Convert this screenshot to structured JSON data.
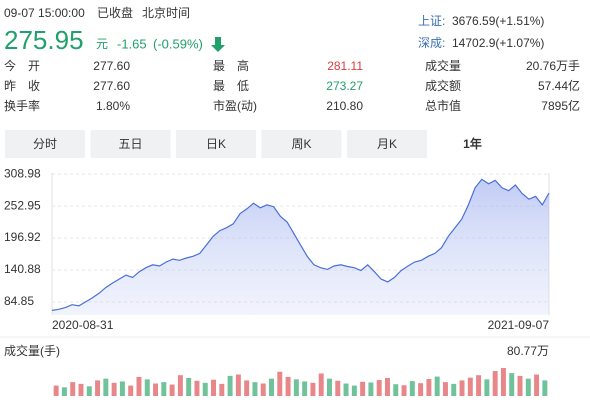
{
  "header": {
    "datetime": "09-07 15:00:00",
    "status": "已收盘",
    "timezone": "北京时间",
    "price": "275.95",
    "unit": "元",
    "change": "-1.65",
    "change_pct": "(-0.59%)"
  },
  "indices": [
    {
      "name": "上证:",
      "value": "3676.59(+1.51%)"
    },
    {
      "name": "深成:",
      "value": "14702.9(+1.07%)"
    }
  ],
  "stats": [
    [
      {
        "label": "今　开",
        "value": "277.60"
      },
      {
        "label": "最　高",
        "value": "281.11",
        "color": "#e03a3a"
      },
      {
        "label": "成交量",
        "value": "20.76万手"
      }
    ],
    [
      {
        "label": "昨　收",
        "value": "277.60"
      },
      {
        "label": "最　低",
        "value": "273.27",
        "color": "#22a06b"
      },
      {
        "label": "成交额",
        "value": "57.44亿"
      }
    ],
    [
      {
        "label": "换手率",
        "value": "1.80%"
      },
      {
        "label": "市盈(动)",
        "value": "210.80"
      },
      {
        "label": "总市值",
        "value": "7895亿"
      }
    ]
  ],
  "tabs": [
    "分时",
    "五日",
    "日K",
    "周K",
    "月K",
    "1年"
  ],
  "active_tab": 5,
  "chart": {
    "type": "area",
    "ylim": [
      62,
      311
    ],
    "yticks": [
      308.98,
      252.95,
      196.92,
      140.88,
      84.85
    ],
    "grid": true,
    "x_start": "2020-08-31",
    "x_end": "2021-09-07",
    "line_color": "#4a6fd8",
    "price": {
      "values": [
        70,
        72,
        75,
        80,
        78,
        85,
        92,
        100,
        110,
        118,
        125,
        132,
        128,
        138,
        145,
        150,
        148,
        155,
        160,
        158,
        162,
        165,
        170,
        185,
        200,
        210,
        215,
        222,
        240,
        248,
        258,
        250,
        255,
        252,
        235,
        225,
        205,
        185,
        165,
        150,
        145,
        142,
        148,
        150,
        147,
        145,
        140,
        150,
        138,
        125,
        120,
        128,
        140,
        148,
        155,
        158,
        165,
        170,
        180,
        200,
        215,
        230,
        255,
        285,
        300,
        292,
        298,
        285,
        280,
        290,
        275,
        265,
        270,
        255,
        275.95
      ]
    },
    "volume_title": "成交量(手)",
    "volume_max_label": "80.77万",
    "volume_lim": [
      0,
      80.77
    ],
    "up_color": "#e8878a",
    "down_color": "#6fc29a",
    "volume": [
      30,
      25,
      40,
      35,
      28,
      45,
      50,
      38,
      42,
      30,
      55,
      48,
      36,
      40,
      33,
      60,
      52,
      44,
      38,
      47,
      35,
      58,
      62,
      45,
      40,
      36,
      50,
      70,
      55,
      48,
      42,
      38,
      65,
      50,
      44,
      36,
      30,
      41,
      39,
      46,
      52,
      34,
      31,
      43,
      37,
      49,
      56,
      40,
      35,
      45,
      53,
      60,
      48,
      72,
      80.77,
      66,
      58,
      50,
      62,
      45
    ],
    "volume_up": [
      true,
      false,
      true,
      true,
      false,
      true,
      false,
      true,
      false,
      true,
      true,
      false,
      true,
      false,
      true,
      true,
      false,
      true,
      false,
      true,
      true,
      false,
      true,
      true,
      false,
      true,
      false,
      true,
      true,
      false,
      false,
      true,
      true,
      false,
      true,
      false,
      false,
      true,
      false,
      true,
      true,
      false,
      true,
      false,
      true,
      true,
      false,
      true,
      false,
      true,
      true,
      true,
      false,
      true,
      true,
      false,
      true,
      false,
      true,
      false
    ]
  }
}
